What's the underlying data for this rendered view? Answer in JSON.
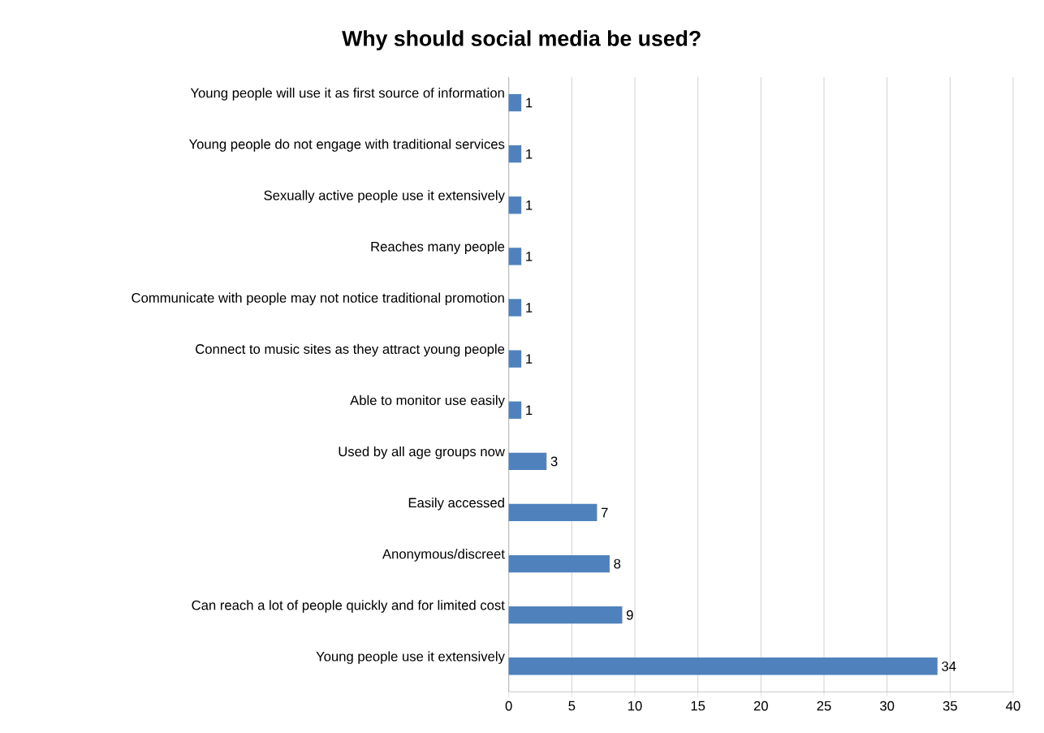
{
  "chart_data": {
    "type": "bar",
    "orientation": "horizontal",
    "title": "Why should social media be used?",
    "categories": [
      "Young people will use it as first source of information",
      "Young people do not engage with traditional services",
      "Sexually active people use it extensively",
      "Reaches many people",
      "Communicate with people may not notice traditional promotion",
      "Connect to music sites as they attract young people",
      "Able to monitor use easily",
      "Used by all age groups now",
      "Easily accessed",
      "Anonymous/discreet",
      "Can reach a lot of people quickly and for limited cost",
      "Young people use it extensively"
    ],
    "values": [
      1,
      1,
      1,
      1,
      1,
      1,
      1,
      3,
      7,
      8,
      9,
      34
    ],
    "color": "#4f81bd",
    "xlim": [
      0,
      40
    ],
    "xticks": [
      0,
      5,
      10,
      15,
      20,
      25,
      30,
      35,
      40
    ],
    "grid": "x",
    "data_labels": true
  }
}
